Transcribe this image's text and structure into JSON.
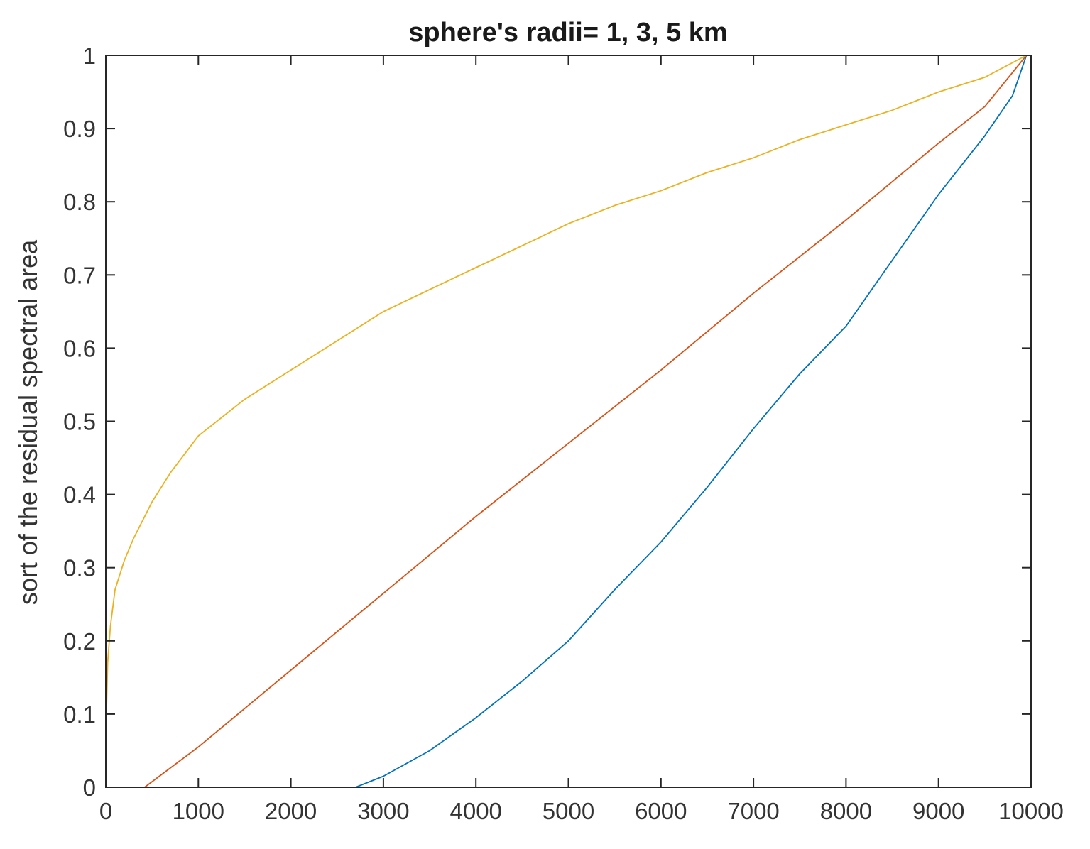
{
  "chart_data": {
    "type": "line",
    "title": "sphere's radii= 1, 3, 5 km",
    "xlabel": "",
    "ylabel": "sort of the residual spectral area",
    "xlim": [
      0,
      10000
    ],
    "ylim": [
      0,
      1
    ],
    "xticks": [
      "0",
      "1000",
      "2000",
      "3000",
      "4000",
      "5000",
      "6000",
      "7000",
      "8000",
      "9000",
      "10000"
    ],
    "yticks": [
      "0",
      "0.1",
      "0.2",
      "0.3",
      "0.4",
      "0.5",
      "0.6",
      "0.7",
      "0.8",
      "0.9",
      "1"
    ],
    "grid": false,
    "legend": "none",
    "series": [
      {
        "color": "#0072BD",
        "x": [
          0,
          2700,
          3000,
          3500,
          4000,
          4500,
          5000,
          5500,
          6000,
          6500,
          7000,
          7500,
          8000,
          8500,
          9000,
          9500,
          9800,
          9950
        ],
        "y": [
          0,
          0,
          0.015,
          0.05,
          0.095,
          0.145,
          0.2,
          0.27,
          0.335,
          0.41,
          0.49,
          0.565,
          0.63,
          0.72,
          0.81,
          0.89,
          0.945,
          1.0
        ]
      },
      {
        "color": "#D95319",
        "x": [
          0,
          420,
          1000,
          2000,
          3000,
          4000,
          5000,
          6000,
          7000,
          8000,
          9000,
          9500,
          9950
        ],
        "y": [
          0,
          0,
          0.055,
          0.16,
          0.265,
          0.37,
          0.47,
          0.57,
          0.675,
          0.775,
          0.88,
          0.93,
          1.0
        ]
      },
      {
        "color": "#EDB120",
        "x": [
          0,
          20,
          50,
          100,
          200,
          300,
          500,
          700,
          1000,
          1500,
          2000,
          2500,
          3000,
          3500,
          4000,
          4500,
          5000,
          5500,
          6000,
          6500,
          7000,
          7500,
          8000,
          8500,
          9000,
          9500,
          9950
        ],
        "y": [
          0.07,
          0.17,
          0.22,
          0.27,
          0.31,
          0.34,
          0.39,
          0.43,
          0.48,
          0.53,
          0.57,
          0.61,
          0.65,
          0.68,
          0.71,
          0.74,
          0.77,
          0.795,
          0.815,
          0.84,
          0.86,
          0.885,
          0.905,
          0.925,
          0.95,
          0.97,
          1.0
        ]
      }
    ]
  }
}
